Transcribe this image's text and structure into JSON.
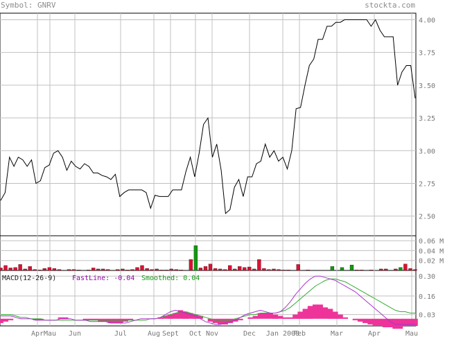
{
  "header": {
    "symbol_label": "Symbol: GNRV",
    "site_label": "stockta.com"
  },
  "macd_legend": {
    "title": "MACD(12-26-9)",
    "fast": "FastLine: -0.04",
    "smoothed": "Smoothed: 0.04"
  },
  "colors": {
    "grid": "#c0c0c0",
    "price_line": "#000000",
    "volume_up": "#119911",
    "volume_down": "#dd1133",
    "macd_hist": "#ee3399",
    "fast_line": "#aa33cc",
    "smooth_line": "#33aa33",
    "label_text": "#777777"
  },
  "chart_data": [
    {
      "type": "line",
      "name": "price",
      "ylim": [
        2.35,
        4.05
      ],
      "y_ticks": [
        "4.00",
        "3.75",
        "3.50",
        "3.25",
        "3.00",
        "2.75",
        "2.50"
      ],
      "y_tick_values": [
        4.0,
        3.75,
        3.5,
        3.25,
        3.0,
        2.75,
        2.5
      ],
      "x_month_labels": [
        "Apr",
        "Mau",
        "Jun",
        "Jul",
        "Aug",
        "Sept",
        "Oct",
        "Nov",
        "Dec",
        "Jan 2008",
        "Feb",
        "Mar",
        "Apr",
        "Mau"
      ],
      "x_month_index": [
        18,
        24,
        36,
        58,
        74,
        82,
        94,
        102,
        120,
        136,
        144,
        162,
        180,
        198
      ],
      "values": [
        2.62,
        2.68,
        2.95,
        2.88,
        2.95,
        2.93,
        2.88,
        2.93,
        2.75,
        2.77,
        2.87,
        2.89,
        2.98,
        3.0,
        2.95,
        2.85,
        2.92,
        2.88,
        2.86,
        2.9,
        2.88,
        2.83,
        2.83,
        2.81,
        2.8,
        2.78,
        2.82,
        2.65,
        2.68,
        2.7,
        2.7,
        2.7,
        2.7,
        2.68,
        2.56,
        2.66,
        2.65,
        2.65,
        2.65,
        2.7,
        2.7,
        2.7,
        2.84,
        2.95,
        2.8,
        2.98,
        3.2,
        3.25,
        2.95,
        3.05,
        2.85,
        2.52,
        2.55,
        2.72,
        2.78,
        2.65,
        2.8,
        2.8,
        2.9,
        2.92,
        3.05,
        2.95,
        3.0,
        2.92,
        2.95,
        2.86,
        3.0,
        3.32,
        3.33,
        3.5,
        3.65,
        3.7,
        3.85,
        3.85,
        3.95,
        3.95,
        3.98,
        3.98,
        4.0,
        4.0,
        4.0,
        4.0,
        4.0,
        4.0,
        3.95,
        4.0,
        3.92,
        3.87,
        3.87,
        3.87,
        3.5,
        3.6,
        3.65,
        3.65,
        3.4
      ]
    },
    {
      "type": "bar",
      "name": "volume",
      "ylim": [
        0,
        0.07
      ],
      "y_ticks": [
        "0.06 M",
        "0.04 M",
        "0.02 M"
      ],
      "y_tick_values": [
        0.06,
        0.04,
        0.02
      ],
      "values": [
        0.005,
        0.01,
        0.005,
        0.006,
        0.012,
        0.003,
        0.008,
        0.002,
        0.001,
        0.004,
        0.006,
        0.004,
        0.002,
        0.0,
        0.002,
        0.002,
        0.001,
        0.0,
        0.001,
        0.005,
        0.003,
        0.003,
        0.002,
        0.0,
        0.002,
        0.003,
        0.001,
        0.002,
        0.006,
        0.01,
        0.004,
        0.002,
        0.003,
        0.001,
        0.001,
        0.003,
        0.002,
        0.001,
        0.0,
        0.022,
        0.05,
        0.005,
        0.008,
        0.013,
        0.004,
        0.003,
        0.002,
        0.01,
        0.003,
        0.008,
        0.006,
        0.007,
        0.003,
        0.022,
        0.004,
        0.002,
        0.003,
        0.002,
        0.001,
        0.001,
        0.0,
        0.012,
        0.0,
        0.001,
        0.0,
        0.0,
        0.0,
        0.0,
        0.008,
        0.0,
        0.006,
        0.0,
        0.011,
        0.001,
        0.001,
        0.0,
        0.001,
        0.0,
        0.003,
        0.003,
        0.0,
        0.003,
        0.006,
        0.013,
        0.004,
        0.002
      ],
      "up": [
        false,
        false,
        false,
        false,
        false,
        false,
        false,
        false,
        false,
        false,
        false,
        false,
        false,
        false,
        false,
        false,
        false,
        false,
        false,
        false,
        false,
        false,
        false,
        false,
        false,
        false,
        false,
        false,
        false,
        false,
        false,
        false,
        false,
        false,
        false,
        false,
        false,
        false,
        false,
        false,
        true,
        false,
        false,
        false,
        false,
        false,
        false,
        false,
        false,
        false,
        false,
        false,
        false,
        false,
        false,
        false,
        false,
        false,
        false,
        false,
        false,
        false,
        false,
        false,
        false,
        false,
        false,
        false,
        true,
        false,
        true,
        false,
        true,
        false,
        false,
        false,
        false,
        false,
        false,
        false,
        false,
        false,
        true,
        false,
        false,
        false
      ]
    },
    {
      "type": "line",
      "name": "macd",
      "ylim": [
        -0.05,
        0.34
      ],
      "y_ticks": [
        "0.30",
        "0.16",
        "0.03"
      ],
      "y_tick_values": [
        0.3,
        0.16,
        0.03
      ],
      "histogram": [
        -0.03,
        -0.02,
        -0.01,
        0.0,
        0.0,
        0.0,
        0.0,
        -0.01,
        -0.01,
        0.0,
        0.0,
        0.0,
        0.01,
        0.01,
        0.0,
        0.0,
        0.0,
        -0.01,
        -0.01,
        -0.01,
        -0.02,
        -0.02,
        -0.03,
        -0.03,
        -0.03,
        -0.02,
        -0.01,
        0.0,
        0.0,
        0.0,
        0.0,
        0.0,
        0.01,
        0.02,
        0.03,
        0.04,
        0.06,
        0.05,
        0.04,
        0.03,
        0.02,
        0.0,
        -0.02,
        -0.03,
        -0.04,
        -0.04,
        -0.03,
        -0.02,
        -0.01,
        0.0,
        0.01,
        0.02,
        0.04,
        0.04,
        0.04,
        0.03,
        0.02,
        0.01,
        0.01,
        0.03,
        0.05,
        0.07,
        0.09,
        0.1,
        0.1,
        0.08,
        0.07,
        0.05,
        0.03,
        0.01,
        0.0,
        -0.01,
        -0.02,
        -0.03,
        -0.04,
        -0.05,
        -0.05,
        -0.06,
        -0.06,
        -0.07,
        -0.07,
        -0.05,
        -0.05,
        -0.05
      ],
      "fast": [
        0.02,
        0.02,
        0.02,
        0.01,
        0.0,
        0.0,
        0.0,
        -0.01,
        -0.01,
        -0.01,
        -0.01,
        -0.01,
        0.0,
        0.0,
        0.0,
        -0.01,
        -0.01,
        -0.01,
        -0.02,
        -0.02,
        -0.02,
        -0.02,
        -0.03,
        -0.03,
        -0.03,
        -0.03,
        -0.02,
        -0.01,
        0.0,
        0.0,
        0.0,
        0.0,
        0.01,
        0.03,
        0.05,
        0.06,
        0.05,
        0.04,
        0.03,
        0.02,
        0.0,
        -0.02,
        -0.03,
        -0.04,
        -0.04,
        -0.03,
        -0.02,
        -0.01,
        0.01,
        0.03,
        0.04,
        0.05,
        0.06,
        0.05,
        0.04,
        0.04,
        0.05,
        0.08,
        0.12,
        0.17,
        0.21,
        0.25,
        0.28,
        0.3,
        0.3,
        0.29,
        0.28,
        0.27,
        0.25,
        0.23,
        0.21,
        0.19,
        0.16,
        0.13,
        0.1,
        0.07,
        0.04,
        0.01,
        -0.02,
        -0.04,
        -0.04,
        -0.04,
        -0.04,
        -0.04
      ],
      "smoothed": [
        0.03,
        0.03,
        0.03,
        0.02,
        0.01,
        0.01,
        0.0,
        0.0,
        0.0,
        -0.01,
        -0.01,
        -0.01,
        -0.01,
        -0.01,
        -0.01,
        -0.01,
        -0.01,
        -0.01,
        -0.01,
        -0.01,
        -0.01,
        -0.01,
        -0.01,
        -0.01,
        -0.01,
        -0.01,
        -0.01,
        -0.01,
        -0.01,
        -0.01,
        0.0,
        0.0,
        0.01,
        0.02,
        0.03,
        0.04,
        0.05,
        0.05,
        0.04,
        0.03,
        0.02,
        0.01,
        0.0,
        -0.01,
        -0.01,
        -0.01,
        -0.01,
        0.0,
        0.01,
        0.02,
        0.03,
        0.03,
        0.04,
        0.04,
        0.04,
        0.04,
        0.05,
        0.06,
        0.08,
        0.11,
        0.14,
        0.17,
        0.2,
        0.23,
        0.25,
        0.27,
        0.28,
        0.28,
        0.27,
        0.26,
        0.24,
        0.22,
        0.2,
        0.18,
        0.16,
        0.14,
        0.12,
        0.1,
        0.08,
        0.06,
        0.05,
        0.05,
        0.04,
        0.04
      ]
    }
  ]
}
